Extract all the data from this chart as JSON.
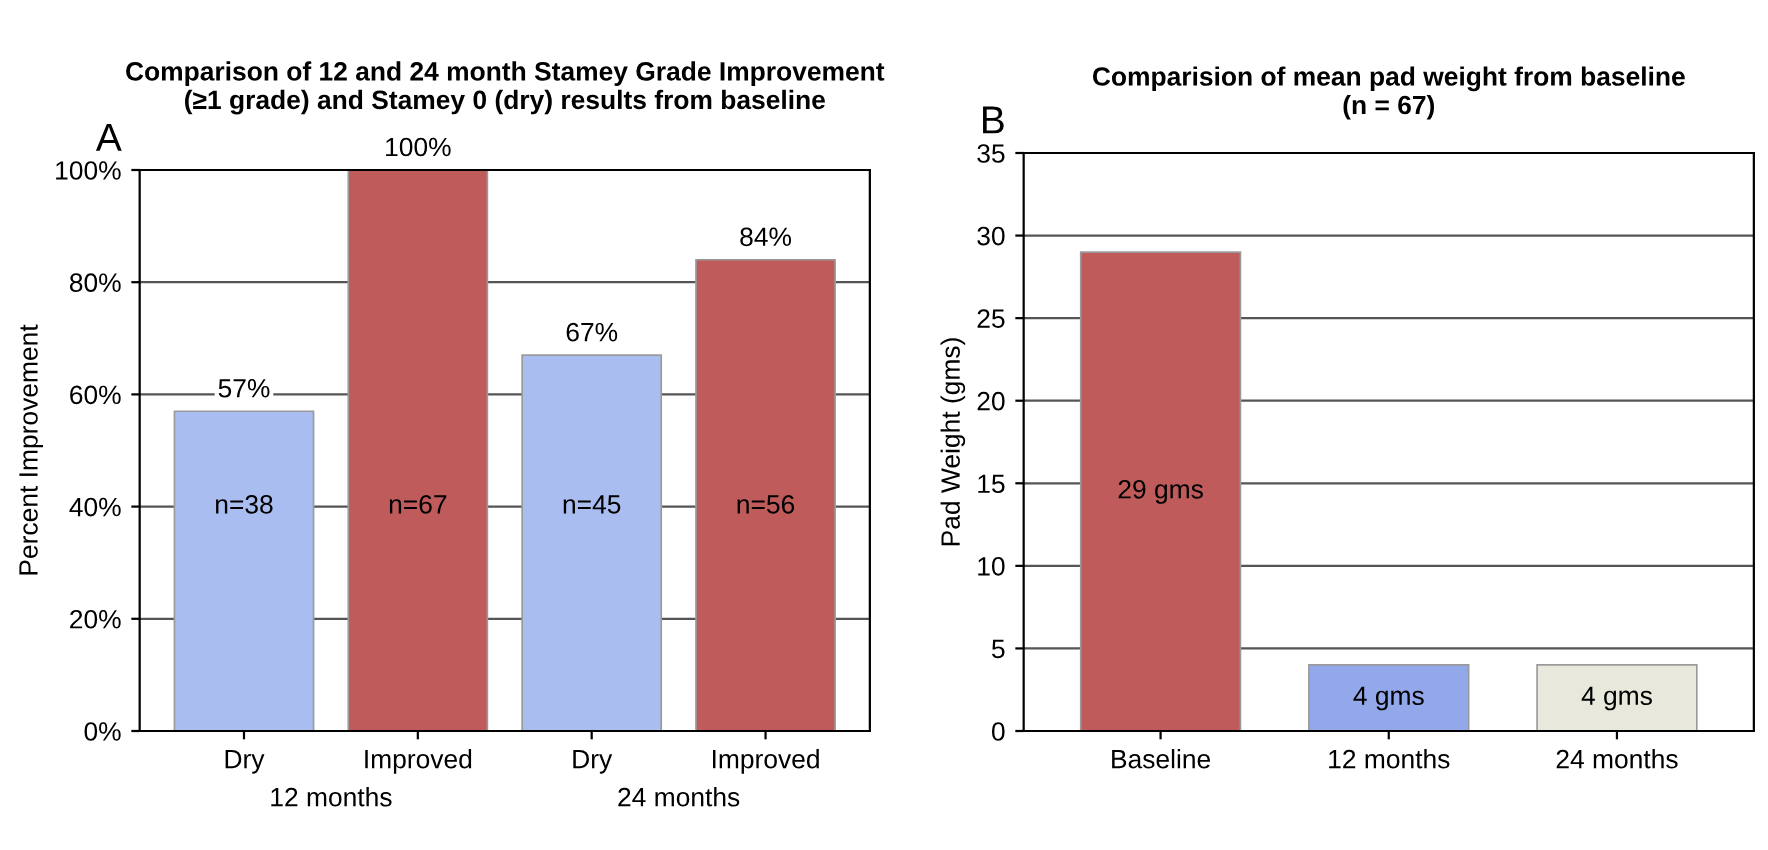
{
  "chart_data": [
    {
      "type": "bar",
      "title": "Comparison of 12 and 24 month Stamey Grade Improvement\n(≥1 grade) and Stamey 0 (dry) results from baseline",
      "ylabel": "Percent Improvement",
      "categories": [
        "Dry",
        "Improved",
        "Dry",
        "Improved"
      ],
      "values": [
        57,
        100,
        67,
        84
      ],
      "colors": [
        "#a9bdf0",
        "#bf5b5b",
        "#a9bdf0",
        "#bf5b5b"
      ],
      "value_labels": [
        "57%",
        "100%",
        "67%",
        "84%"
      ],
      "annotations": [
        "A",
        "12 months",
        "24 months",
        "n=38",
        "n=67",
        "n=45",
        "n=56"
      ],
      "ylim": [
        0,
        100
      ],
      "yticks": [
        {
          "value": 0,
          "label": "0%"
        },
        {
          "value": 20,
          "label": "20%"
        },
        {
          "value": 40,
          "label": "40%"
        },
        {
          "value": 60,
          "label": "60%"
        },
        {
          "value": 80,
          "label": "80%"
        },
        {
          "value": 100,
          "label": "100%"
        }
      ],
      "grid": "y"
    },
    {
      "type": "bar",
      "title": "Comparision of mean pad weight from baseline\n(n = 67)",
      "ylabel": "Pad Weight (gms)",
      "categories": [
        "Baseline",
        "12 months",
        "24 months"
      ],
      "values": [
        29,
        4,
        4
      ],
      "colors": [
        "#bf5b5b",
        "#93a8ea",
        "#e8e9dc"
      ],
      "value_labels": [
        "29 gms",
        "4 gms",
        "4 gms"
      ],
      "annotations": [
        "B"
      ],
      "ylim": [
        0,
        35
      ],
      "yticks": [
        0,
        5,
        10,
        15,
        20,
        25,
        30,
        35
      ],
      "grid": "y"
    }
  ]
}
